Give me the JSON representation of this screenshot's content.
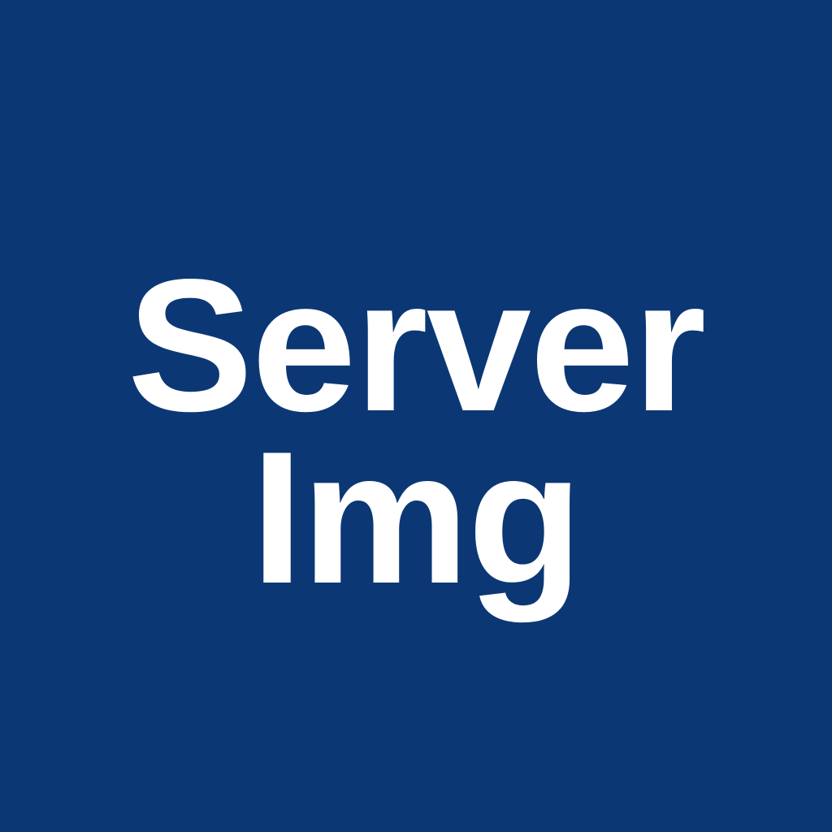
{
  "image": {
    "lines": [
      "Server",
      "Img"
    ],
    "background_color": "#0b3874",
    "text_color": "#ffffff"
  }
}
